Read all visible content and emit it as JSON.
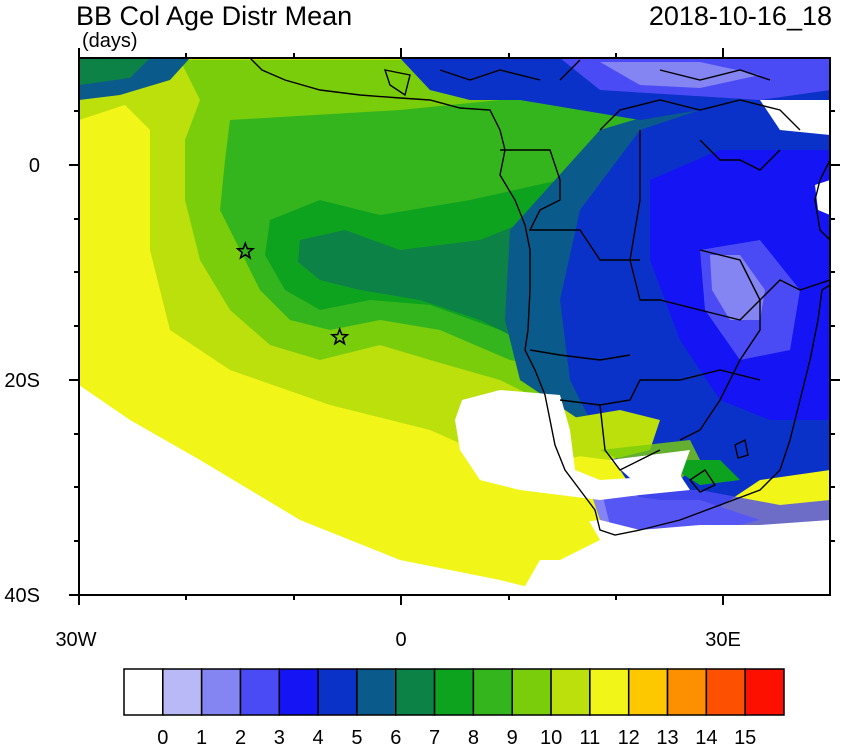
{
  "header": {
    "title": "BB Col Age Distr Mean",
    "units": "(days)",
    "date": "2018-10-16_18"
  },
  "axes": {
    "lat_labels": [
      "0",
      "20S",
      "40S"
    ],
    "lon_labels": [
      "30W",
      "0",
      "30E"
    ]
  },
  "colorbar": {
    "labels": [
      "0",
      "1",
      "2",
      "3",
      "4",
      "5",
      "6",
      "7",
      "8",
      "9",
      "10",
      "11",
      "12",
      "13",
      "14",
      "15"
    ],
    "colors": [
      "#ffffff",
      "#b9b9f7",
      "#8484f2",
      "#4b4bf5",
      "#1414f5",
      "#0b32c8",
      "#0b5a8c",
      "#0c8247",
      "#0ea31f",
      "#35b51d",
      "#7acd0a",
      "#bbe00c",
      "#f2f518",
      "#fdc800",
      "#fd9000",
      "#fd5000",
      "#fe1000"
    ]
  },
  "markers": [
    {
      "name": "star-marker-1",
      "lon": -14.5,
      "lat": -8
    },
    {
      "name": "star-marker-2",
      "lon": -5.7,
      "lat": -16
    }
  ]
}
